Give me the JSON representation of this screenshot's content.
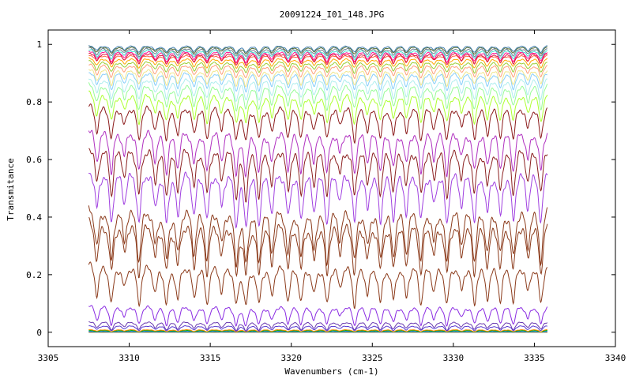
{
  "chart_data": {
    "type": "line",
    "title": "20091224_I01_148.JPG",
    "xlabel": "Wavenumbers (cm-1)",
    "ylabel": "Transmitance",
    "xlim": [
      3305,
      3340
    ],
    "ylim": [
      -0.05,
      1.05
    ],
    "x_ticks": [
      3305,
      3310,
      3315,
      3320,
      3325,
      3330,
      3335,
      3340
    ],
    "x_tick_labels": [
      "3305",
      "3310",
      "3315",
      "3320",
      "3325",
      "3330",
      "3335",
      "3340"
    ],
    "y_ticks": [
      0,
      0.2,
      0.4,
      0.6,
      0.8,
      1
    ],
    "y_tick_labels": [
      "0",
      "0.2",
      "0.4",
      "0.6",
      "0.8",
      "1"
    ],
    "grid": false,
    "legend": "none",
    "x_range_of_data": [
      3307.5,
      3335.8
    ],
    "absorption_lines_cm1": [
      3308.0,
      3308.9,
      3309.7,
      3310.6,
      3311.6,
      3312.3,
      3313.0,
      3314.0,
      3314.8,
      3315.7,
      3316.6,
      3317.2,
      3318.0,
      3318.8,
      3319.8,
      3320.6,
      3321.4,
      3322.2,
      3323.0,
      3323.9,
      3324.7,
      3325.5,
      3326.3,
      3327.1,
      3328.0,
      3328.8,
      3329.6,
      3330.5,
      3331.3,
      3332.1,
      3332.9,
      3333.7,
      3334.6,
      3335.4
    ],
    "series": [
      {
        "color": "#8b4513",
        "baseline": 0.0
      },
      {
        "color": "#2e8b57",
        "baseline": 0.002
      },
      {
        "color": "#1e90ff",
        "baseline": 0.004
      },
      {
        "color": "#00aa00",
        "baseline": 0.007
      },
      {
        "color": "#ff8c00",
        "baseline": 0.01
      },
      {
        "color": "#5a3ad0",
        "baseline": 0.025
      },
      {
        "color": "#6a3ab0",
        "baseline": 0.04
      },
      {
        "color": "#8a2be2",
        "baseline": 0.1
      },
      {
        "color": "#8b3a1a",
        "baseline": 0.25
      },
      {
        "color": "#8b3a1a",
        "baseline": 0.4
      },
      {
        "color": "#8b3a1a",
        "baseline": 0.45
      },
      {
        "color": "#a040e0",
        "baseline": 0.58
      },
      {
        "color": "#8b2020",
        "baseline": 0.66
      },
      {
        "color": "#b030c0",
        "baseline": 0.72
      },
      {
        "color": "#8b1a1a",
        "baseline": 0.8
      },
      {
        "color": "#adff2f",
        "baseline": 0.84
      },
      {
        "color": "#98fb98",
        "baseline": 0.87
      },
      {
        "color": "#afeeee",
        "baseline": 0.89
      },
      {
        "color": "#87cefa",
        "baseline": 0.91
      },
      {
        "color": "#f0e68c",
        "baseline": 0.92
      },
      {
        "color": "#ffa07a",
        "baseline": 0.935
      },
      {
        "color": "#9acd32",
        "baseline": 0.945
      },
      {
        "color": "#ffa500",
        "baseline": 0.955
      },
      {
        "color": "#ff6347",
        "baseline": 0.965
      },
      {
        "color": "#dc143c",
        "baseline": 0.975
      },
      {
        "color": "#ff1493",
        "baseline": 0.98
      },
      {
        "color": "#40e0d0",
        "baseline": 0.985
      },
      {
        "color": "#708090",
        "baseline": 0.99
      },
      {
        "color": "#556b2f",
        "baseline": 0.995
      },
      {
        "color": "#4682b4",
        "baseline": 0.998
      }
    ]
  }
}
